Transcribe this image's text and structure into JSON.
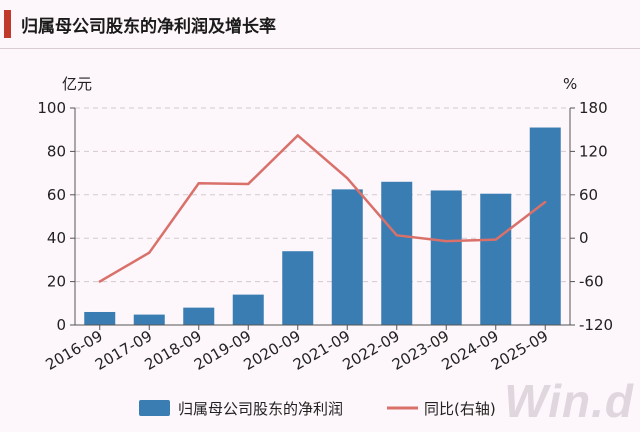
{
  "title": "归属母公司股东的净利润及增长率",
  "watermark": "Win.d",
  "chart_data": {
    "type": "bar",
    "categories": [
      "2016-09",
      "2017-09",
      "2018-09",
      "2019-09",
      "2020-09",
      "2021-09",
      "2022-09",
      "2023-09",
      "2024-09",
      "2025-09"
    ],
    "series": [
      {
        "name": "归属母公司股东的净利润",
        "type": "bar",
        "axis": "left",
        "color": "#3a7db3",
        "values": [
          6,
          4.8,
          8,
          14,
          34,
          62.5,
          66,
          62,
          60.5,
          91
        ]
      },
      {
        "name": "同比(右轴)",
        "type": "line",
        "axis": "right",
        "color": "#d9706a",
        "values": [
          -60,
          -20,
          76,
          75,
          142,
          83,
          4,
          -4,
          -2,
          50
        ]
      }
    ],
    "y_left": {
      "unit": "亿元",
      "min": 0,
      "max": 100,
      "ticks": [
        "0",
        "20",
        "40",
        "60",
        "80",
        "100"
      ]
    },
    "y_right": {
      "unit": "%",
      "min": -120,
      "max": 180,
      "ticks": [
        "-120",
        "-60",
        "0",
        "60",
        "120",
        "180"
      ]
    },
    "grid": true,
    "legend_position": "bottom"
  }
}
